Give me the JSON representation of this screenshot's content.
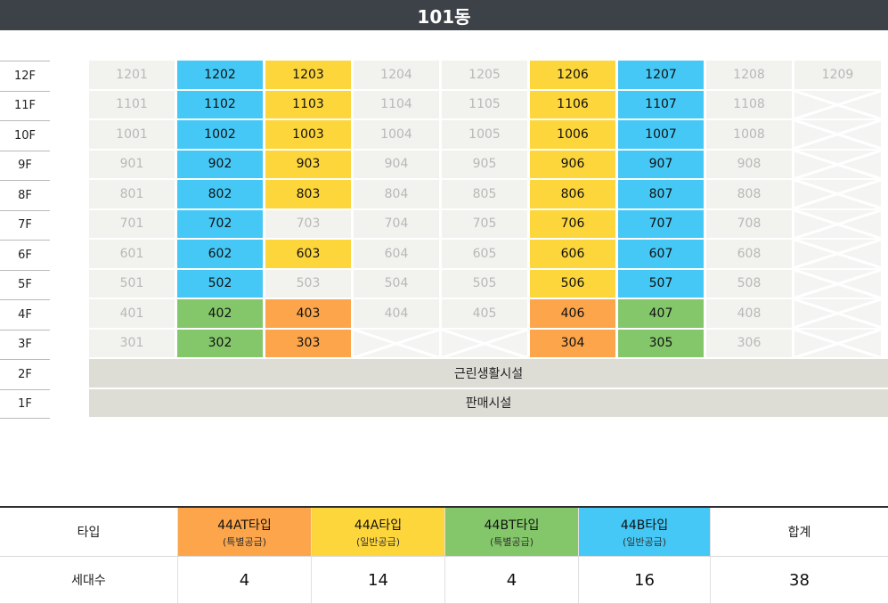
{
  "building": {
    "title": "101동"
  },
  "floors": [
    "12F",
    "11F",
    "10F",
    "9F",
    "8F",
    "7F",
    "6F",
    "5F",
    "4F",
    "3F",
    "2F",
    "1F"
  ],
  "unit_rows": [
    [
      {
        "n": "1201",
        "t": "n"
      },
      {
        "n": "1202",
        "t": "44B"
      },
      {
        "n": "1203",
        "t": "44A"
      },
      {
        "n": "1204",
        "t": "n"
      },
      {
        "n": "1205",
        "t": "n"
      },
      {
        "n": "1206",
        "t": "44A"
      },
      {
        "n": "1207",
        "t": "44B"
      },
      {
        "n": "1208",
        "t": "n"
      },
      {
        "n": "1209",
        "t": "n"
      }
    ],
    [
      {
        "n": "1101",
        "t": "n"
      },
      {
        "n": "1102",
        "t": "44B"
      },
      {
        "n": "1103",
        "t": "44A"
      },
      {
        "n": "1104",
        "t": "n"
      },
      {
        "n": "1105",
        "t": "n"
      },
      {
        "n": "1106",
        "t": "44A"
      },
      {
        "n": "1107",
        "t": "44B"
      },
      {
        "n": "1108",
        "t": "n"
      },
      {
        "n": "",
        "t": "x"
      }
    ],
    [
      {
        "n": "1001",
        "t": "n"
      },
      {
        "n": "1002",
        "t": "44B"
      },
      {
        "n": "1003",
        "t": "44A"
      },
      {
        "n": "1004",
        "t": "n"
      },
      {
        "n": "1005",
        "t": "n"
      },
      {
        "n": "1006",
        "t": "44A"
      },
      {
        "n": "1007",
        "t": "44B"
      },
      {
        "n": "1008",
        "t": "n"
      },
      {
        "n": "",
        "t": "x"
      }
    ],
    [
      {
        "n": "901",
        "t": "n"
      },
      {
        "n": "902",
        "t": "44B"
      },
      {
        "n": "903",
        "t": "44A"
      },
      {
        "n": "904",
        "t": "n"
      },
      {
        "n": "905",
        "t": "n"
      },
      {
        "n": "906",
        "t": "44A"
      },
      {
        "n": "907",
        "t": "44B"
      },
      {
        "n": "908",
        "t": "n"
      },
      {
        "n": "",
        "t": "x"
      }
    ],
    [
      {
        "n": "801",
        "t": "n"
      },
      {
        "n": "802",
        "t": "44B"
      },
      {
        "n": "803",
        "t": "44A"
      },
      {
        "n": "804",
        "t": "n"
      },
      {
        "n": "805",
        "t": "n"
      },
      {
        "n": "806",
        "t": "44A"
      },
      {
        "n": "807",
        "t": "44B"
      },
      {
        "n": "808",
        "t": "n"
      },
      {
        "n": "",
        "t": "x"
      }
    ],
    [
      {
        "n": "701",
        "t": "n"
      },
      {
        "n": "702",
        "t": "44B"
      },
      {
        "n": "703",
        "t": "n"
      },
      {
        "n": "704",
        "t": "n"
      },
      {
        "n": "705",
        "t": "n"
      },
      {
        "n": "706",
        "t": "44A"
      },
      {
        "n": "707",
        "t": "44B"
      },
      {
        "n": "708",
        "t": "n"
      },
      {
        "n": "",
        "t": "x"
      }
    ],
    [
      {
        "n": "601",
        "t": "n"
      },
      {
        "n": "602",
        "t": "44B"
      },
      {
        "n": "603",
        "t": "44A"
      },
      {
        "n": "604",
        "t": "n"
      },
      {
        "n": "605",
        "t": "n"
      },
      {
        "n": "606",
        "t": "44A"
      },
      {
        "n": "607",
        "t": "44B"
      },
      {
        "n": "608",
        "t": "n"
      },
      {
        "n": "",
        "t": "x"
      }
    ],
    [
      {
        "n": "501",
        "t": "n"
      },
      {
        "n": "502",
        "t": "44B"
      },
      {
        "n": "503",
        "t": "n"
      },
      {
        "n": "504",
        "t": "n"
      },
      {
        "n": "505",
        "t": "n"
      },
      {
        "n": "506",
        "t": "44A"
      },
      {
        "n": "507",
        "t": "44B"
      },
      {
        "n": "508",
        "t": "n"
      },
      {
        "n": "",
        "t": "x"
      }
    ],
    [
      {
        "n": "401",
        "t": "n"
      },
      {
        "n": "402",
        "t": "44BT"
      },
      {
        "n": "403",
        "t": "44AT"
      },
      {
        "n": "404",
        "t": "n"
      },
      {
        "n": "405",
        "t": "n"
      },
      {
        "n": "406",
        "t": "44AT"
      },
      {
        "n": "407",
        "t": "44BT"
      },
      {
        "n": "408",
        "t": "n"
      },
      {
        "n": "",
        "t": "x"
      }
    ],
    [
      {
        "n": "301",
        "t": "n"
      },
      {
        "n": "302",
        "t": "44BT"
      },
      {
        "n": "303",
        "t": "44AT"
      },
      {
        "n": "",
        "t": "x"
      },
      {
        "n": "",
        "t": "x"
      },
      {
        "n": "304",
        "t": "44AT"
      },
      {
        "n": "305",
        "t": "44BT"
      },
      {
        "n": "306",
        "t": "n"
      },
      {
        "n": "",
        "t": "x"
      }
    ]
  ],
  "wide_rows": [
    "근린생활시설",
    "판매시설"
  ],
  "colors": {
    "44AT": "#fca54a",
    "44A": "#fdd63c",
    "44BT": "#84c76a",
    "44B": "#45c8f5"
  },
  "summary": {
    "type_label": "타입",
    "count_label": "세대수",
    "total_label": "합계",
    "types": [
      {
        "key": "44AT",
        "name": "44AT타입",
        "sub": "(특별공급)",
        "count": "4"
      },
      {
        "key": "44A",
        "name": "44A타입",
        "sub": "(일반공급)",
        "count": "14"
      },
      {
        "key": "44BT",
        "name": "44BT타입",
        "sub": "(특별공급)",
        "count": "4"
      },
      {
        "key": "44B",
        "name": "44B타입",
        "sub": "(일반공급)",
        "count": "16"
      }
    ],
    "total": "38"
  }
}
